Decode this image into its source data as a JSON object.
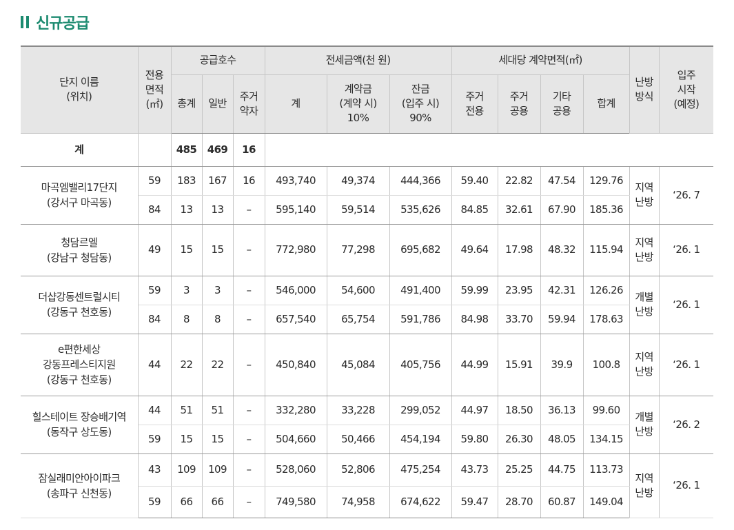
{
  "section": {
    "title": "신규공급"
  },
  "table": {
    "header": {
      "name_line1": "단지 이름",
      "name_line2": "(위치)",
      "area_line1": "전용",
      "area_line2": "면적",
      "area_line3": "(㎡)",
      "supply_group": "공급호수",
      "supply_total": "총계",
      "supply_general": "일반",
      "supply_priority_line1": "주거",
      "supply_priority_line2": "약자",
      "price_group": "전세금액(천 원)",
      "price_total": "계",
      "deposit_line1": "계약금",
      "deposit_line2": "(계약 시)",
      "deposit_line3": "10%",
      "balance_line1": "잔금",
      "balance_line2": "(입주 시)",
      "balance_line3": "90%",
      "contract_group": "세대당 계약면적(㎡)",
      "exclusive_line1": "주거",
      "exclusive_line2": "전용",
      "shared_line1": "주거",
      "shared_line2": "공용",
      "other_line1": "기타",
      "other_line2": "공용",
      "sum": "합계",
      "heating_line1": "난방",
      "heating_line2": "방식",
      "movein_line1": "입주",
      "movein_line2": "시작",
      "movein_line3": "(예정)"
    },
    "total_row": {
      "label": "계",
      "total": "485",
      "general": "469",
      "priority": "16"
    },
    "rows": [
      {
        "name_line1": "마곡엠밸리17단지",
        "name_line2": "(강서구 마곡동)",
        "heating_line1": "지역",
        "heating_line2": "난방",
        "movein": "‘26. 7",
        "r1": {
          "area": "59",
          "total": "183",
          "general": "167",
          "priority": "16",
          "price": "493,740",
          "deposit": "49,374",
          "balance": "444,366",
          "exclusive": "59.40",
          "shared": "22.82",
          "other": "47.54",
          "sum": "129.76"
        },
        "r2": {
          "area": "84",
          "total": "13",
          "general": "13",
          "priority": "–",
          "price": "595,140",
          "deposit": "59,514",
          "balance": "535,626",
          "exclusive": "84.85",
          "shared": "32.61",
          "other": "67.90",
          "sum": "185.36"
        }
      },
      {
        "name_line1": "청담르엘",
        "name_line2": "(강남구 청담동)",
        "heating_line1": "지역",
        "heating_line2": "난방",
        "movein": "‘26. 1",
        "r1": {
          "area": "49",
          "total": "15",
          "general": "15",
          "priority": "–",
          "price": "772,980",
          "deposit": "77,298",
          "balance": "695,682",
          "exclusive": "49.64",
          "shared": "17.98",
          "other": "48.32",
          "sum": "115.94"
        }
      },
      {
        "name_line1": "더샵강동센트럴시티",
        "name_line2": "(강동구 천호동)",
        "heating_line1": "개별",
        "heating_line2": "난방",
        "movein": "‘26. 1",
        "r1": {
          "area": "59",
          "total": "3",
          "general": "3",
          "priority": "–",
          "price": "546,000",
          "deposit": "54,600",
          "balance": "491,400",
          "exclusive": "59.99",
          "shared": "23.95",
          "other": "42.31",
          "sum": "126.26"
        },
        "r2": {
          "area": "84",
          "total": "8",
          "general": "8",
          "priority": "–",
          "price": "657,540",
          "deposit": "65,754",
          "balance": "591,786",
          "exclusive": "84.98",
          "shared": "33.70",
          "other": "59.94",
          "sum": "178.63"
        }
      },
      {
        "name_line1": "e편한세상",
        "name_line2": "강동프레스티지원",
        "name_line3": "(강동구 천호동)",
        "heating_line1": "지역",
        "heating_line2": "난방",
        "movein": "‘26. 1",
        "r1": {
          "area": "44",
          "total": "22",
          "general": "22",
          "priority": "–",
          "price": "450,840",
          "deposit": "45,084",
          "balance": "405,756",
          "exclusive": "44.99",
          "shared": "15.91",
          "other": "39.9",
          "sum": "100.8"
        }
      },
      {
        "name_line1": "힐스테이트 장승배기역",
        "name_line2": "(동작구 상도동)",
        "heating_line1": "개별",
        "heating_line2": "난방",
        "movein": "‘26. 2",
        "r1": {
          "area": "44",
          "total": "51",
          "general": "51",
          "priority": "–",
          "price": "332,280",
          "deposit": "33,228",
          "balance": "299,052",
          "exclusive": "44.97",
          "shared": "18.50",
          "other": "36.13",
          "sum": "99.60"
        },
        "r2": {
          "area": "59",
          "total": "15",
          "general": "15",
          "priority": "–",
          "price": "504,660",
          "deposit": "50,466",
          "balance": "454,194",
          "exclusive": "59.80",
          "shared": "26.30",
          "other": "48.05",
          "sum": "134.15"
        }
      },
      {
        "name_line1": "잠실래미안아이파크",
        "name_line2": "(송파구 신천동)",
        "heating_line1": "지역",
        "heating_line2": "난방",
        "movein": "‘26. 1",
        "r1": {
          "area": "43",
          "total": "109",
          "general": "109",
          "priority": "–",
          "price": "528,060",
          "deposit": "52,806",
          "balance": "475,254",
          "exclusive": "43.73",
          "shared": "25.25",
          "other": "44.75",
          "sum": "113.73"
        },
        "r2": {
          "area": "59",
          "total": "66",
          "general": "66",
          "priority": "–",
          "price": "749,580",
          "deposit": "74,958",
          "balance": "674,622",
          "exclusive": "59.47",
          "shared": "28.70",
          "other": "60.87",
          "sum": "149.04"
        }
      }
    ]
  }
}
